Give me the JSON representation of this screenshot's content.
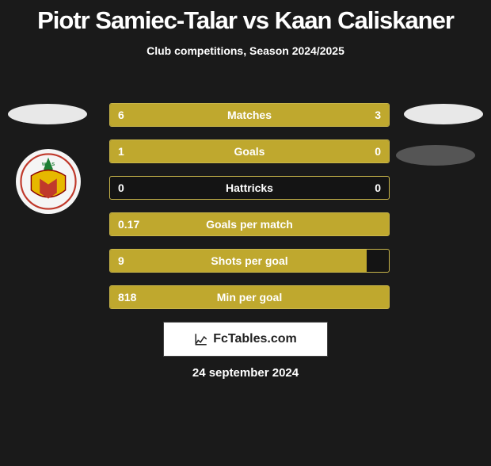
{
  "title": "Piotr Samiec-Talar vs Kaan Caliskaner",
  "subtitle": "Club competitions, Season 2024/2025",
  "date": "24 september 2024",
  "footer_text": "FcTables.com",
  "colors": {
    "bar_fill": "#bfa82e",
    "bar_border": "#c9b64a",
    "background": "#1a1a1a",
    "ellipse_light": "#e8e8e8",
    "ellipse_dark": "#555555"
  },
  "stats": [
    {
      "label": "Matches",
      "left_val": "6",
      "right_val": "3",
      "left_pct": 67,
      "right_pct": 33
    },
    {
      "label": "Goals",
      "left_val": "1",
      "right_val": "0",
      "left_pct": 75,
      "right_pct": 25
    },
    {
      "label": "Hattricks",
      "left_val": "0",
      "right_val": "0",
      "left_pct": 0,
      "right_pct": 0
    },
    {
      "label": "Goals per match",
      "left_val": "0.17",
      "right_val": "",
      "left_pct": 100,
      "right_pct": 0
    },
    {
      "label": "Shots per goal",
      "left_val": "9",
      "right_val": "",
      "left_pct": 92,
      "right_pct": 0
    },
    {
      "label": "Min per goal",
      "left_val": "818",
      "right_val": "",
      "left_pct": 100,
      "right_pct": 0
    }
  ]
}
